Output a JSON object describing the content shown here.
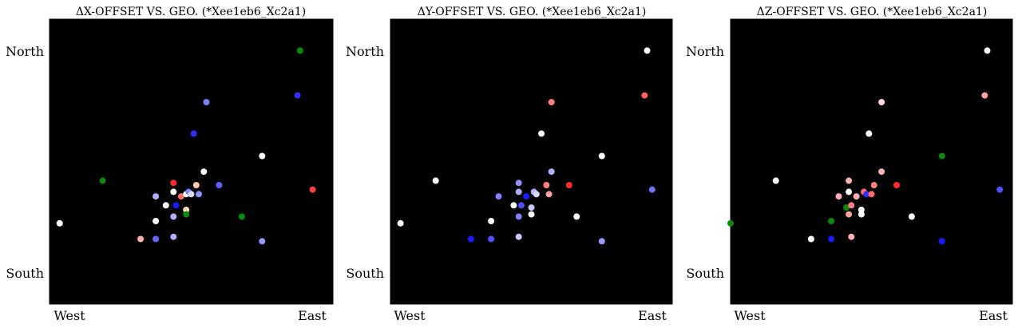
{
  "chart_data": [
    {
      "type": "scatter",
      "title": "ΔX-OFFSET VS. GEO. (*Xee1eb6_Xc2a1)",
      "xticks": [
        "West",
        "East"
      ],
      "yticks": [
        "North",
        "South"
      ],
      "xlim": [
        -0.04,
        1.08
      ],
      "ylim": [
        -0.13,
        1.14
      ],
      "points": [
        {
          "x": 0.0,
          "y": 0.23,
          "color": "#ffffff"
        },
        {
          "x": 0.17,
          "y": 0.42,
          "color": "#0a8a0a"
        },
        {
          "x": 0.32,
          "y": 0.16,
          "color": "#ffb0b0"
        },
        {
          "x": 0.38,
          "y": 0.16,
          "color": "#6464ff"
        },
        {
          "x": 0.38,
          "y": 0.24,
          "color": "#ffffff"
        },
        {
          "x": 0.38,
          "y": 0.35,
          "color": "#b0b0ff"
        },
        {
          "x": 0.42,
          "y": 0.31,
          "color": "#ffffff"
        },
        {
          "x": 0.45,
          "y": 0.37,
          "color": "#ffffff"
        },
        {
          "x": 0.45,
          "y": 0.41,
          "color": "#ff2a2a"
        },
        {
          "x": 0.45,
          "y": 0.26,
          "color": "#b0b0ff"
        },
        {
          "x": 0.45,
          "y": 0.17,
          "color": "#b0b0ff"
        },
        {
          "x": 0.46,
          "y": 0.31,
          "color": "#1a1aff"
        },
        {
          "x": 0.48,
          "y": 0.35,
          "color": "#ff6a6a"
        },
        {
          "x": 0.5,
          "y": 0.29,
          "color": "#ffd8b0"
        },
        {
          "x": 0.5,
          "y": 0.27,
          "color": "#0a8a0a"
        },
        {
          "x": 0.5,
          "y": 0.36,
          "color": "#ffffff"
        },
        {
          "x": 0.51,
          "y": 0.37,
          "color": "#8080ff"
        },
        {
          "x": 0.52,
          "y": 0.36,
          "color": "#d8d8ff"
        },
        {
          "x": 0.53,
          "y": 0.63,
          "color": "#3030ff"
        },
        {
          "x": 0.54,
          "y": 0.4,
          "color": "#ffc8b0"
        },
        {
          "x": 0.55,
          "y": 0.36,
          "color": "#9090ff"
        },
        {
          "x": 0.57,
          "y": 0.46,
          "color": "#ffffff"
        },
        {
          "x": 0.58,
          "y": 0.77,
          "color": "#8080ff"
        },
        {
          "x": 0.63,
          "y": 0.4,
          "color": "#6060ff"
        },
        {
          "x": 0.72,
          "y": 0.26,
          "color": "#0a8a0a"
        },
        {
          "x": 0.8,
          "y": 0.53,
          "color": "#ffffff"
        },
        {
          "x": 0.8,
          "y": 0.15,
          "color": "#9898ff"
        },
        {
          "x": 0.95,
          "y": 1.0,
          "color": "#0a8a0a"
        },
        {
          "x": 0.94,
          "y": 0.8,
          "color": "#3030ff"
        },
        {
          "x": 1.0,
          "y": 0.38,
          "color": "#ff4040"
        }
      ]
    },
    {
      "type": "scatter",
      "title": "ΔY-OFFSET VS. GEO. (*Xee1eb6_Xc2a1)",
      "xticks": [
        "West",
        "East"
      ],
      "yticks": [
        "North",
        "South"
      ],
      "xlim": [
        -0.04,
        1.08
      ],
      "ylim": [
        -0.13,
        1.14
      ],
      "points": [
        {
          "x": 0.0,
          "y": 0.23,
          "color": "#ffffff"
        },
        {
          "x": 0.14,
          "y": 0.42,
          "color": "#ffffff"
        },
        {
          "x": 0.28,
          "y": 0.16,
          "color": "#1a1aff"
        },
        {
          "x": 0.36,
          "y": 0.16,
          "color": "#5050ff"
        },
        {
          "x": 0.36,
          "y": 0.24,
          "color": "#ffffff"
        },
        {
          "x": 0.39,
          "y": 0.35,
          "color": "#8080ff"
        },
        {
          "x": 0.45,
          "y": 0.31,
          "color": "#ffffff"
        },
        {
          "x": 0.47,
          "y": 0.37,
          "color": "#b0b0ff"
        },
        {
          "x": 0.47,
          "y": 0.41,
          "color": "#9090ff"
        },
        {
          "x": 0.47,
          "y": 0.26,
          "color": "#8080ff"
        },
        {
          "x": 0.47,
          "y": 0.17,
          "color": "#c8c8ff"
        },
        {
          "x": 0.48,
          "y": 0.31,
          "color": "#5050ff"
        },
        {
          "x": 0.5,
          "y": 0.35,
          "color": "#1a1aff"
        },
        {
          "x": 0.52,
          "y": 0.3,
          "color": "#c8c8ff"
        },
        {
          "x": 0.52,
          "y": 0.27,
          "color": "#ffffff"
        },
        {
          "x": 0.53,
          "y": 0.37,
          "color": "#b0b0ff"
        },
        {
          "x": 0.54,
          "y": 0.36,
          "color": "#d8d8ff"
        },
        {
          "x": 0.56,
          "y": 0.63,
          "color": "#ffffff"
        },
        {
          "x": 0.58,
          "y": 0.4,
          "color": "#ff8080"
        },
        {
          "x": 0.59,
          "y": 0.36,
          "color": "#ffa0a0"
        },
        {
          "x": 0.6,
          "y": 0.46,
          "color": "#b0b0ff"
        },
        {
          "x": 0.6,
          "y": 0.77,
          "color": "#ff8080"
        },
        {
          "x": 0.67,
          "y": 0.4,
          "color": "#ff2a2a"
        },
        {
          "x": 0.7,
          "y": 0.26,
          "color": "#ffffff"
        },
        {
          "x": 0.8,
          "y": 0.53,
          "color": "#ffffff"
        },
        {
          "x": 0.8,
          "y": 0.15,
          "color": "#9898ff"
        },
        {
          "x": 0.98,
          "y": 1.0,
          "color": "#ffffff"
        },
        {
          "x": 0.97,
          "y": 0.8,
          "color": "#ff6060"
        },
        {
          "x": 1.0,
          "y": 0.38,
          "color": "#7070ff"
        }
      ]
    },
    {
      "type": "scatter",
      "title": "ΔZ-OFFSET VS. GEO. (*Xee1eb6_Xc2a1)",
      "xticks": [
        "West",
        "East"
      ],
      "yticks": [
        "North",
        "South"
      ],
      "xlim": [
        -0.04,
        1.08
      ],
      "ylim": [
        -0.13,
        1.14
      ],
      "points": [
        {
          "x": -0.04,
          "y": 0.23,
          "color": "#0a8a0a"
        },
        {
          "x": 0.14,
          "y": 0.42,
          "color": "#ffffff"
        },
        {
          "x": 0.28,
          "y": 0.16,
          "color": "#ffffff"
        },
        {
          "x": 0.36,
          "y": 0.16,
          "color": "#1a1aff"
        },
        {
          "x": 0.36,
          "y": 0.24,
          "color": "#0a8a0a"
        },
        {
          "x": 0.39,
          "y": 0.35,
          "color": "#ffb0b0"
        },
        {
          "x": 0.42,
          "y": 0.3,
          "color": "#0a8a0a"
        },
        {
          "x": 0.43,
          "y": 0.37,
          "color": "#ffffff"
        },
        {
          "x": 0.43,
          "y": 0.42,
          "color": "#ffb0b0"
        },
        {
          "x": 0.43,
          "y": 0.27,
          "color": "#ffa0a0"
        },
        {
          "x": 0.44,
          "y": 0.17,
          "color": "#ffb0b0"
        },
        {
          "x": 0.44,
          "y": 0.31,
          "color": "#ff8080"
        },
        {
          "x": 0.46,
          "y": 0.35,
          "color": "#ffb0b0"
        },
        {
          "x": 0.48,
          "y": 0.29,
          "color": "#ffffff"
        },
        {
          "x": 0.48,
          "y": 0.27,
          "color": "#ffffff"
        },
        {
          "x": 0.49,
          "y": 0.37,
          "color": "#ff6a6a"
        },
        {
          "x": 0.5,
          "y": 0.36,
          "color": "#3030ff"
        },
        {
          "x": 0.51,
          "y": 0.63,
          "color": "#ffffff"
        },
        {
          "x": 0.53,
          "y": 0.4,
          "color": "#ff8080"
        },
        {
          "x": 0.52,
          "y": 0.36,
          "color": "#ff6a6a"
        },
        {
          "x": 0.56,
          "y": 0.46,
          "color": "#ffb0b0"
        },
        {
          "x": 0.56,
          "y": 0.77,
          "color": "#ffd8d8"
        },
        {
          "x": 0.62,
          "y": 0.4,
          "color": "#ff2a2a"
        },
        {
          "x": 0.68,
          "y": 0.26,
          "color": "#ffffff"
        },
        {
          "x": 0.8,
          "y": 0.53,
          "color": "#0a8a0a"
        },
        {
          "x": 0.8,
          "y": 0.15,
          "color": "#1a1aff"
        },
        {
          "x": 0.98,
          "y": 1.0,
          "color": "#ffffff"
        },
        {
          "x": 0.97,
          "y": 0.8,
          "color": "#ffa0a0"
        },
        {
          "x": 1.03,
          "y": 0.38,
          "color": "#5050ff"
        }
      ]
    }
  ]
}
